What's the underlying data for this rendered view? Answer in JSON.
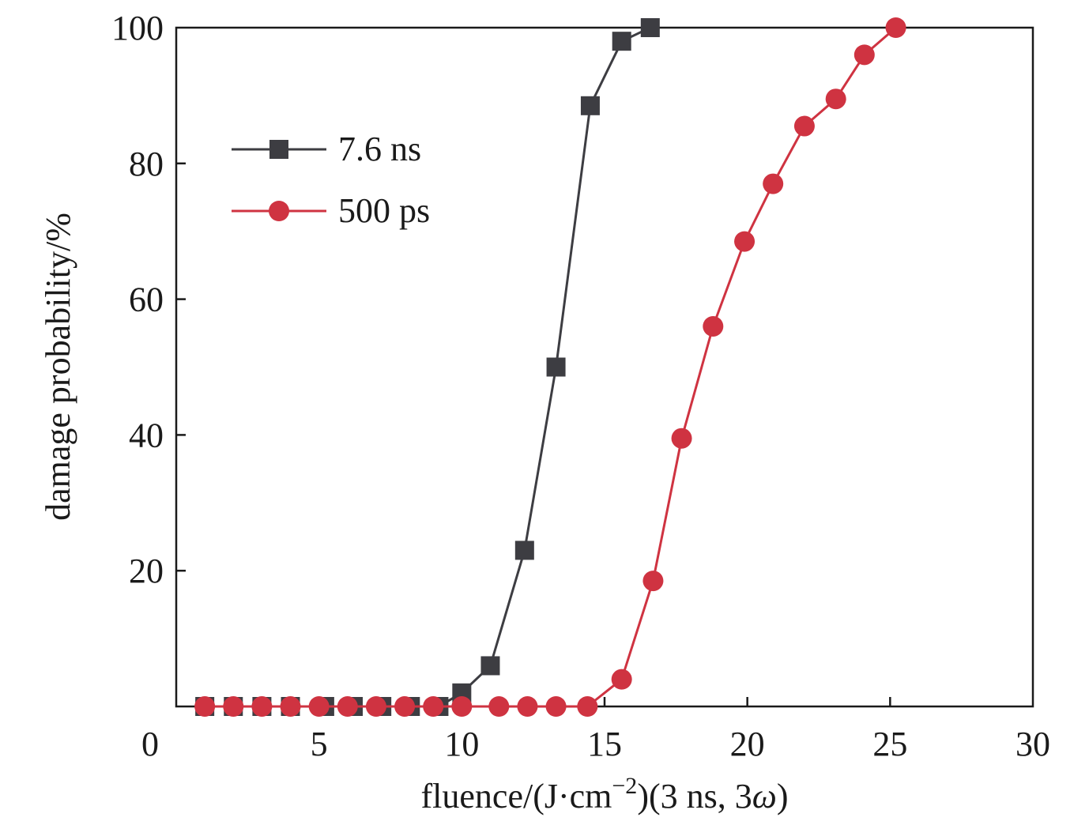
{
  "chart_data": {
    "type": "line",
    "title": "",
    "xlabel_parts": {
      "prefix": "fluence/(J·cm",
      "superscript": "−2",
      "middle": ")(3 ns, 3",
      "italic": "ω",
      "suffix": ")"
    },
    "ylabel": "damage probability/%",
    "xlim": [
      0,
      30
    ],
    "ylim": [
      0,
      100
    ],
    "xticks": [
      0,
      5,
      10,
      15,
      20,
      25,
      30
    ],
    "yticks": [
      20,
      40,
      60,
      80,
      100
    ],
    "xtick_labels": [
      "0",
      "5",
      "10",
      "15",
      "20",
      "25",
      "30"
    ],
    "ytick_labels": [
      "20",
      "40",
      "60",
      "80",
      "100"
    ],
    "grid": false,
    "legend_position": "upper-left",
    "series": [
      {
        "name": "7.6 ns",
        "color": "#3d3d42",
        "marker": "square",
        "x": [
          1.0,
          2.0,
          3.0,
          4.0,
          5.2,
          6.2,
          7.2,
          8.2,
          9.2,
          10.0,
          11.0,
          12.2,
          13.3,
          14.5,
          15.6,
          16.6
        ],
        "y": [
          0,
          0,
          0,
          0,
          0,
          0,
          0,
          0,
          0,
          2,
          6,
          23,
          50,
          88.5,
          98,
          100
        ]
      },
      {
        "name": "500 ps",
        "color": "#cf3341",
        "marker": "circle",
        "x": [
          1.0,
          2.0,
          3.0,
          4.0,
          5.0,
          6.0,
          7.0,
          8.0,
          9.0,
          10.0,
          11.3,
          12.3,
          13.3,
          14.4,
          15.6,
          16.7,
          17.7,
          18.8,
          19.9,
          20.9,
          22.0,
          23.1,
          24.1,
          25.2
        ],
        "y": [
          0,
          0,
          0,
          0,
          0,
          0,
          0,
          0,
          0,
          0,
          0,
          0,
          0,
          0,
          4,
          18.5,
          39.5,
          56,
          68.5,
          77,
          85.5,
          89.5,
          96,
          100
        ]
      }
    ]
  }
}
